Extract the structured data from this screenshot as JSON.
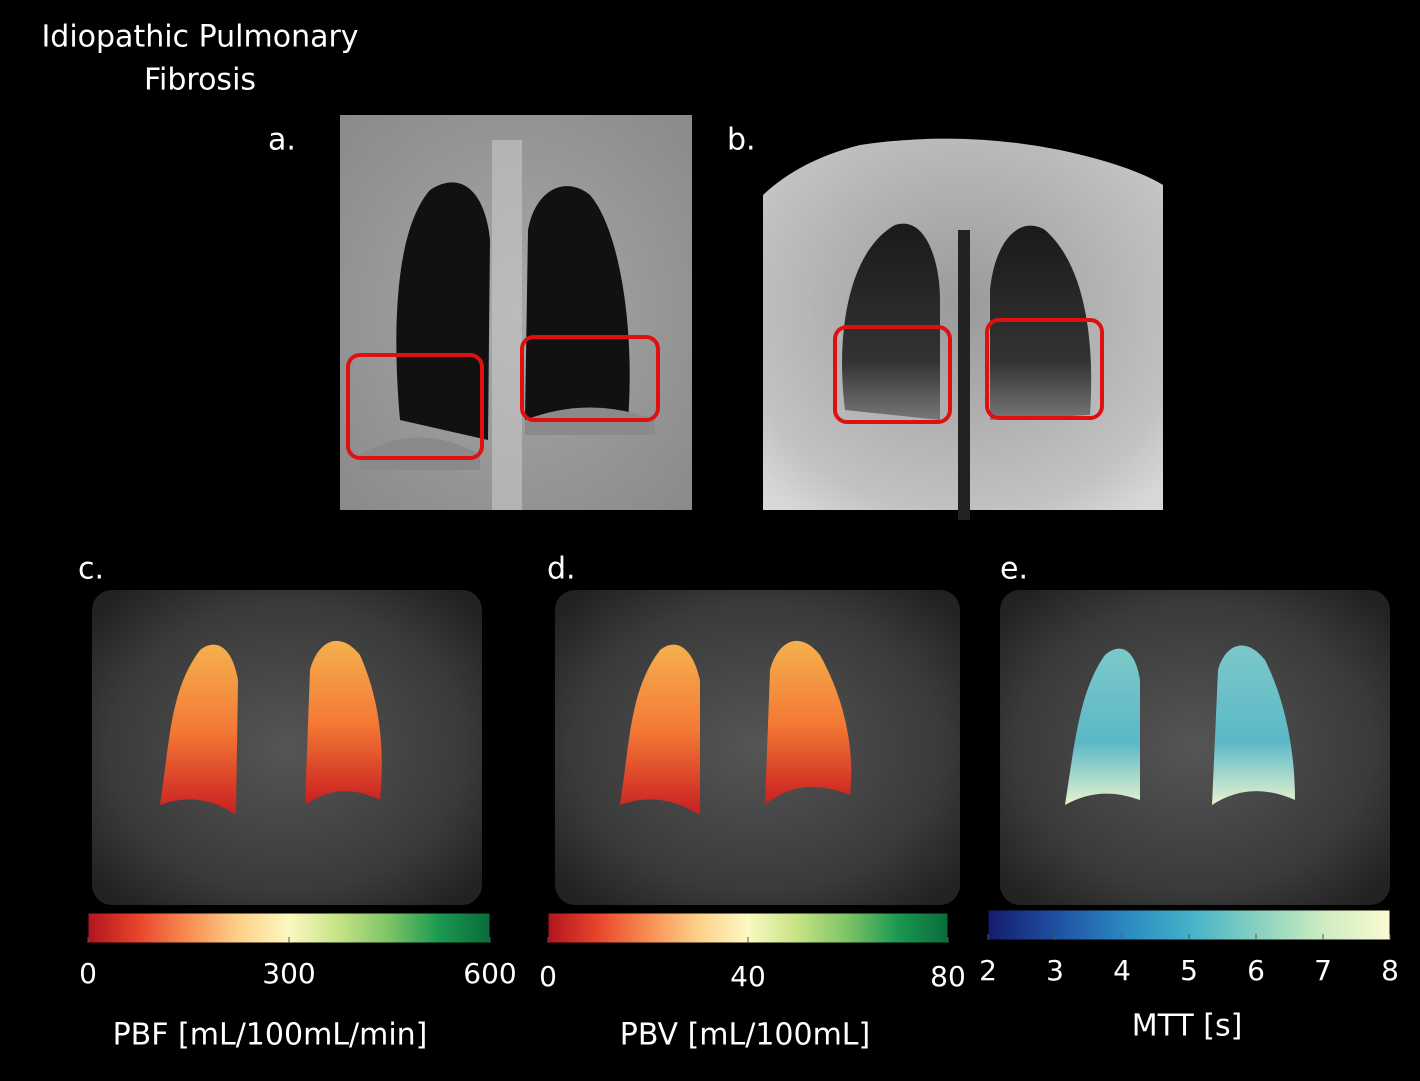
{
  "title_lines": [
    "Idiopathic Pulmonary",
    "Fibrosis"
  ],
  "panels": [
    {
      "label": "a."
    },
    {
      "label": "b."
    },
    {
      "label": "c."
    },
    {
      "label": "d."
    },
    {
      "label": "e."
    }
  ],
  "colorbars": [
    {
      "label": "PBF [mL/100mL/min]",
      "lim": [
        0,
        600
      ],
      "ticks": [
        0,
        300,
        600
      ],
      "colors": [
        "#b3131f",
        "#e8452c",
        "#f88d52",
        "#fdd08a",
        "#fbf8c0",
        "#c5e383",
        "#7cc366",
        "#1a9850",
        "#0b6b3a"
      ]
    },
    {
      "label": "PBV [mL/100mL]",
      "lim": [
        0,
        80
      ],
      "ticks": [
        0,
        40,
        80
      ],
      "colors": [
        "#b3131f",
        "#e8452c",
        "#f88d52",
        "#fdd08a",
        "#fbf8c0",
        "#c5e383",
        "#7cc366",
        "#1a9850",
        "#0b6b3a"
      ]
    },
    {
      "label": "MTT [s]",
      "lim": [
        2,
        8
      ],
      "ticks": [
        2,
        3,
        4,
        5,
        6,
        7,
        8
      ],
      "colors": [
        "#141c6b",
        "#1f4fa0",
        "#2a86c0",
        "#43b2c8",
        "#86d0c0",
        "#cdecc0",
        "#fbfad2"
      ]
    }
  ]
}
